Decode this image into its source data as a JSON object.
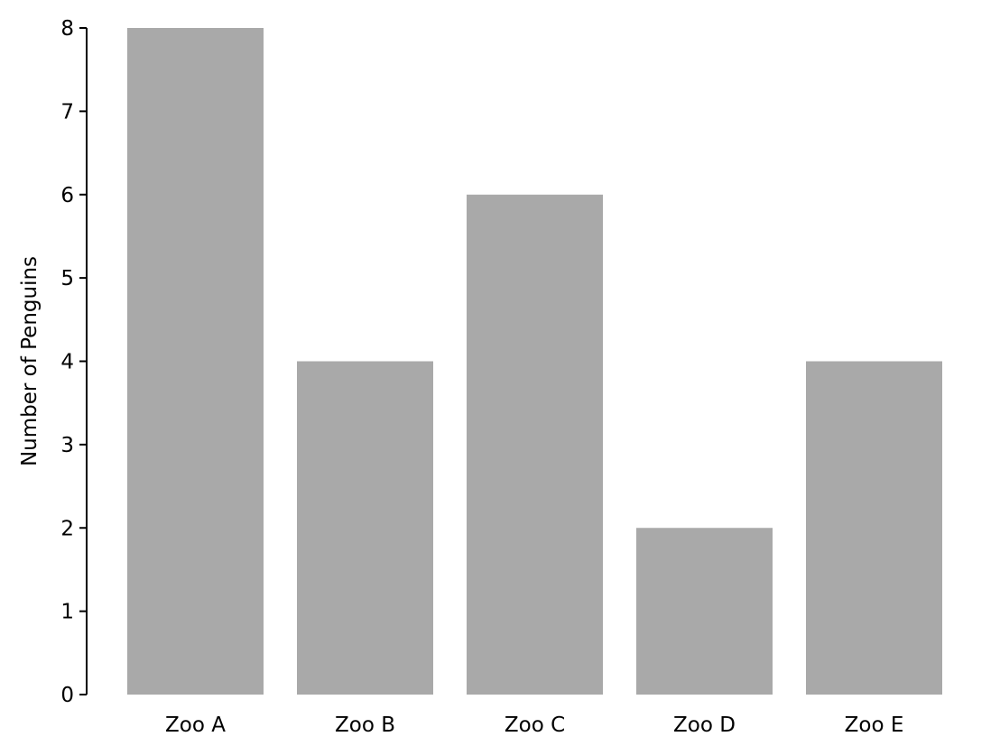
{
  "chart_data": {
    "type": "bar",
    "categories": [
      "Zoo A",
      "Zoo B",
      "Zoo C",
      "Zoo D",
      "Zoo E"
    ],
    "values": [
      8,
      4,
      6,
      2,
      4
    ],
    "title": "",
    "xlabel": "",
    "ylabel": "Number of Penguins",
    "ylim": [
      0,
      8
    ],
    "yticks": [
      0,
      1,
      2,
      3,
      4,
      5,
      6,
      7,
      8
    ],
    "grid": false,
    "legend": "none",
    "bar_color": "#a9a9a9",
    "axis_color": "#000000"
  }
}
